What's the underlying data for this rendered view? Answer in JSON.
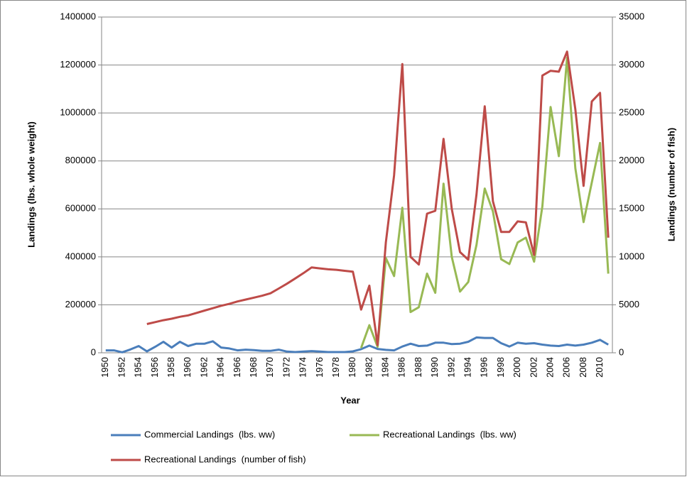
{
  "chart_data": {
    "type": "line",
    "x_label": "Year",
    "y_label": "Landings (lbs. whole weight)",
    "y2_label": "Landings (number of fish)",
    "categories": [
      1950,
      null,
      1952,
      null,
      1954,
      null,
      1956,
      null,
      1958,
      null,
      1960,
      null,
      1962,
      null,
      1964,
      null,
      1966,
      null,
      1968,
      null,
      1970,
      null,
      1972,
      null,
      1974,
      null,
      1976,
      null,
      1978,
      null,
      1980,
      null,
      1982,
      null,
      1984,
      null,
      1986,
      null,
      1988,
      null,
      1990,
      null,
      1992,
      null,
      1994,
      null,
      1996,
      null,
      1998,
      null,
      2000,
      null,
      2002,
      null,
      2004,
      null,
      2006,
      null,
      2008,
      null,
      2010,
      null
    ],
    "series": [
      {
        "name": "Commercial Landings  (lbs. ww)",
        "color": "#4a7ebb",
        "axis": "y",
        "values": [
          10000,
          10000,
          2000,
          14000,
          28000,
          6000,
          25000,
          46000,
          22000,
          46000,
          28000,
          38000,
          38000,
          48000,
          22000,
          18000,
          10000,
          13000,
          11000,
          8000,
          8000,
          13000,
          5000,
          3000,
          5000,
          7000,
          5000,
          3000,
          3000,
          3000,
          6000,
          15000,
          30000,
          16000,
          12000,
          10000,
          26000,
          38000,
          28000,
          30000,
          42000,
          42000,
          36000,
          38000,
          46000,
          64000,
          62000,
          62000,
          40000,
          26000,
          42000,
          38000,
          40000,
          34000,
          30000,
          28000,
          34000,
          30000,
          34000,
          42000,
          54000,
          34000
        ]
      },
      {
        "name": "Recreational Landings  (lbs. ww)",
        "color": "#98b954",
        "axis": "y",
        "values": [
          null,
          null,
          null,
          null,
          null,
          null,
          null,
          null,
          null,
          null,
          null,
          null,
          null,
          null,
          null,
          null,
          null,
          null,
          null,
          null,
          null,
          null,
          null,
          null,
          null,
          null,
          null,
          null,
          null,
          null,
          null,
          20000,
          115000,
          25000,
          395000,
          320000,
          605000,
          170000,
          190000,
          330000,
          250000,
          705000,
          400000,
          255000,
          295000,
          450000,
          685000,
          590000,
          390000,
          370000,
          460000,
          480000,
          380000,
          610000,
          1025000,
          820000,
          1230000,
          770000,
          545000,
          710000,
          875000,
          330000
        ]
      },
      {
        "name": "Recreational Landings  (number of fish)",
        "color": "#be4b48",
        "axis": "y2",
        "values": [
          null,
          null,
          null,
          null,
          null,
          3000,
          3200,
          3400,
          3550,
          3750,
          3900,
          4150,
          4400,
          4650,
          4900,
          5100,
          5350,
          5550,
          5750,
          5950,
          6200,
          6700,
          7200,
          7750,
          8300,
          8900,
          8800,
          8700,
          8650,
          8550,
          8450,
          4500,
          7000,
          800,
          11500,
          18500,
          30100,
          10000,
          9200,
          14500,
          14800,
          22300,
          15000,
          10500,
          9700,
          16500,
          25700,
          15800,
          12600,
          12600,
          13700,
          13600,
          10200,
          28900,
          29400,
          29300,
          31400,
          25400,
          17400,
          26200,
          27100,
          12000
        ]
      }
    ],
    "ylim": [
      0,
      1400000
    ],
    "yticks": [
      0,
      200000,
      400000,
      600000,
      800000,
      1000000,
      1200000,
      1400000
    ],
    "y2lim": [
      0,
      35000
    ],
    "y2ticks": [
      0,
      5000,
      10000,
      15000,
      20000,
      25000,
      30000,
      35000
    ],
    "grid": true
  }
}
